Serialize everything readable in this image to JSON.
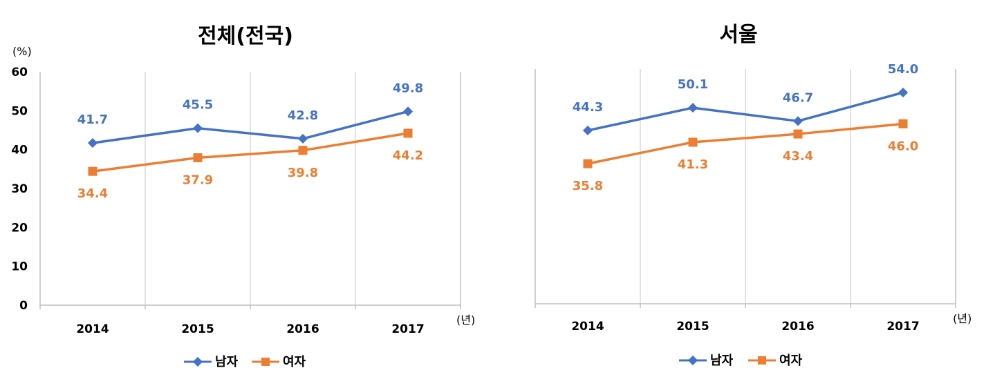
{
  "colors": {
    "male": "#4472C4",
    "female": "#ED7D31",
    "grid": "#D9D9D9",
    "axis": "#BFBFBF"
  },
  "chart_data": [
    {
      "type": "line",
      "title": "전체(전국)",
      "y_unit": "(%)",
      "x_unit": "(년)",
      "categories": [
        "2014",
        "2015",
        "2016",
        "2017"
      ],
      "ylim": [
        0,
        60
      ],
      "yticks": [
        "0",
        "10",
        "20",
        "30",
        "40",
        "50",
        "60"
      ],
      "y_axis_visible": true,
      "grid": "vertical",
      "legend": "bottom",
      "series": [
        {
          "name": "남자",
          "values": [
            41.7,
            45.5,
            42.8,
            49.8
          ],
          "labels": [
            "41.7",
            "45.5",
            "42.8",
            "49.8"
          ],
          "marker": "diamond"
        },
        {
          "name": "여자",
          "values": [
            34.4,
            37.9,
            39.8,
            44.2
          ],
          "labels": [
            "34.4",
            "37.9",
            "39.8",
            "44.2"
          ],
          "marker": "square"
        }
      ]
    },
    {
      "type": "line",
      "title": "서울",
      "y_unit": "",
      "x_unit": "(년)",
      "categories": [
        "2014",
        "2015",
        "2016",
        "2017"
      ],
      "ylim": [
        0,
        60
      ],
      "yticks": [],
      "y_axis_visible": false,
      "grid": "vertical",
      "legend": "bottom",
      "series": [
        {
          "name": "남자",
          "values": [
            44.3,
            50.1,
            46.7,
            54.0
          ],
          "labels": [
            "44.3",
            "50.1",
            "46.7",
            "54.0"
          ],
          "marker": "diamond"
        },
        {
          "name": "여자",
          "values": [
            35.8,
            41.3,
            43.4,
            46.0
          ],
          "labels": [
            "35.8",
            "41.3",
            "43.4",
            "46.0"
          ],
          "marker": "square"
        }
      ]
    }
  ]
}
